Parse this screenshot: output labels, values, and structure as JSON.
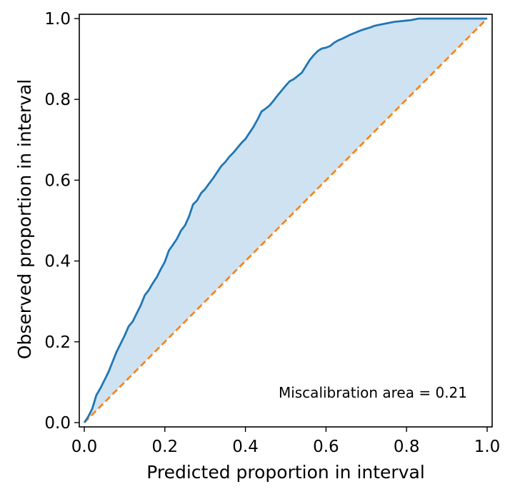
{
  "chart_data": {
    "type": "line",
    "xlabel": "Predicted proportion in interval",
    "ylabel": "Observed proportion in interval",
    "xlim": [
      0.0,
      1.0
    ],
    "ylim": [
      0.0,
      1.0
    ],
    "xticks": [
      "0.0",
      "0.2",
      "0.4",
      "0.6",
      "0.8",
      "1.0"
    ],
    "yticks": [
      "0.0",
      "0.2",
      "0.4",
      "0.6",
      "0.8",
      "1.0"
    ],
    "annotation": "Miscalibration area = 0.21",
    "grid": false,
    "colors": {
      "calibration": "#1f77b4",
      "ideal": "#ff7f0e",
      "fill": "#cfe2f1"
    },
    "series": [
      {
        "x": [
          0.0,
          0.01,
          0.02,
          0.03,
          0.04,
          0.05,
          0.06,
          0.07,
          0.08,
          0.09,
          0.1,
          0.11,
          0.12,
          0.13,
          0.14,
          0.15,
          0.16,
          0.17,
          0.18,
          0.19,
          0.2,
          0.21,
          0.22,
          0.23,
          0.24,
          0.25,
          0.26,
          0.27,
          0.28,
          0.29,
          0.3,
          0.31,
          0.32,
          0.33,
          0.34,
          0.35,
          0.36,
          0.37,
          0.38,
          0.39,
          0.4,
          0.41,
          0.42,
          0.43,
          0.44,
          0.45,
          0.46,
          0.47,
          0.48,
          0.49,
          0.5,
          0.51,
          0.52,
          0.53,
          0.54,
          0.55,
          0.56,
          0.57,
          0.58,
          0.59,
          0.6,
          0.61,
          0.62,
          0.63,
          0.64,
          0.65,
          0.66,
          0.67,
          0.68,
          0.69,
          0.7,
          0.71,
          0.72,
          0.73,
          0.74,
          0.75,
          0.76,
          0.77,
          0.78,
          0.79,
          0.8,
          0.81,
          0.82,
          0.83,
          0.84,
          0.85,
          0.86,
          0.87,
          0.88,
          0.89,
          0.9,
          0.91,
          0.92,
          0.93,
          0.94,
          0.95,
          0.96,
          0.97,
          0.98,
          0.99,
          1.0
        ],
        "y": [
          0.0,
          0.015,
          0.035,
          0.068,
          0.085,
          0.105,
          0.125,
          0.15,
          0.175,
          0.195,
          0.215,
          0.238,
          0.25,
          0.27,
          0.29,
          0.315,
          0.328,
          0.345,
          0.36,
          0.38,
          0.398,
          0.426,
          0.44,
          0.455,
          0.475,
          0.488,
          0.51,
          0.54,
          0.55,
          0.568,
          0.578,
          0.592,
          0.605,
          0.62,
          0.635,
          0.645,
          0.658,
          0.668,
          0.68,
          0.692,
          0.702,
          0.717,
          0.732,
          0.75,
          0.77,
          0.777,
          0.785,
          0.797,
          0.81,
          0.822,
          0.834,
          0.845,
          0.85,
          0.858,
          0.866,
          0.882,
          0.898,
          0.91,
          0.92,
          0.926,
          0.928,
          0.932,
          0.94,
          0.946,
          0.95,
          0.955,
          0.96,
          0.964,
          0.968,
          0.972,
          0.975,
          0.978,
          0.982,
          0.984,
          0.986,
          0.988,
          0.99,
          0.992,
          0.993,
          0.994,
          0.995,
          0.996,
          0.998,
          1.0,
          1.0,
          1.0,
          1.0,
          1.0,
          1.0,
          1.0,
          1.0,
          1.0,
          1.0,
          1.0,
          1.0,
          1.0,
          1.0,
          1.0,
          1.0,
          1.0,
          1.0
        ]
      },
      {
        "x": [
          0.0,
          1.0
        ],
        "y": [
          0.0,
          1.0
        ]
      }
    ]
  }
}
